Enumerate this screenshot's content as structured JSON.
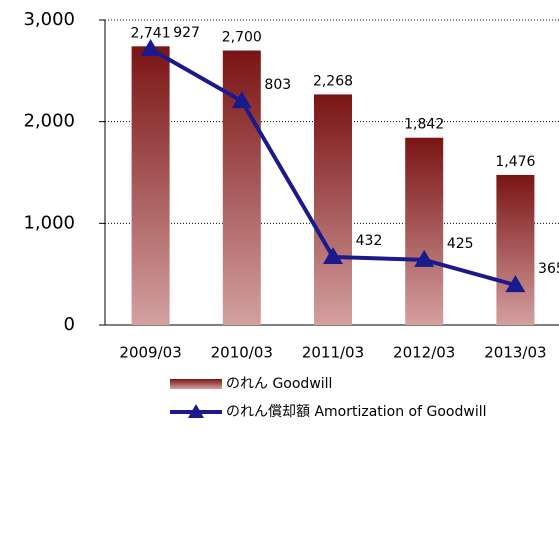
{
  "chart_data": {
    "type": "bar_line",
    "categories": [
      "2009/03",
      "2010/03",
      "2011/03",
      "2012/03",
      "2013/03"
    ],
    "series": [
      {
        "name": "のれん Goodwill",
        "type": "bar",
        "color": "#7a1414",
        "values": [
          2741,
          2700,
          2268,
          1842,
          1476
        ],
        "value_labels": [
          "2,741",
          "2,700",
          "2,268",
          "1,842",
          "1,476"
        ]
      },
      {
        "name": "のれん償却額 Amortization of Goodwill",
        "type": "line",
        "axis": "y2",
        "color": "#1a1a8c",
        "values": [
          927,
          803,
          432,
          425,
          365
        ]
      }
    ],
    "ylim": [
      0,
      3000
    ],
    "yticks": [
      0,
      {
        "value": 1000,
        "label": "1,000"
      },
      {
        "value": 2000,
        "label": "2,000"
      },
      {
        "value": 3000,
        "label": "3,000"
      }
    ],
    "y2lim": [
      270,
      996
    ],
    "grid": true
  }
}
